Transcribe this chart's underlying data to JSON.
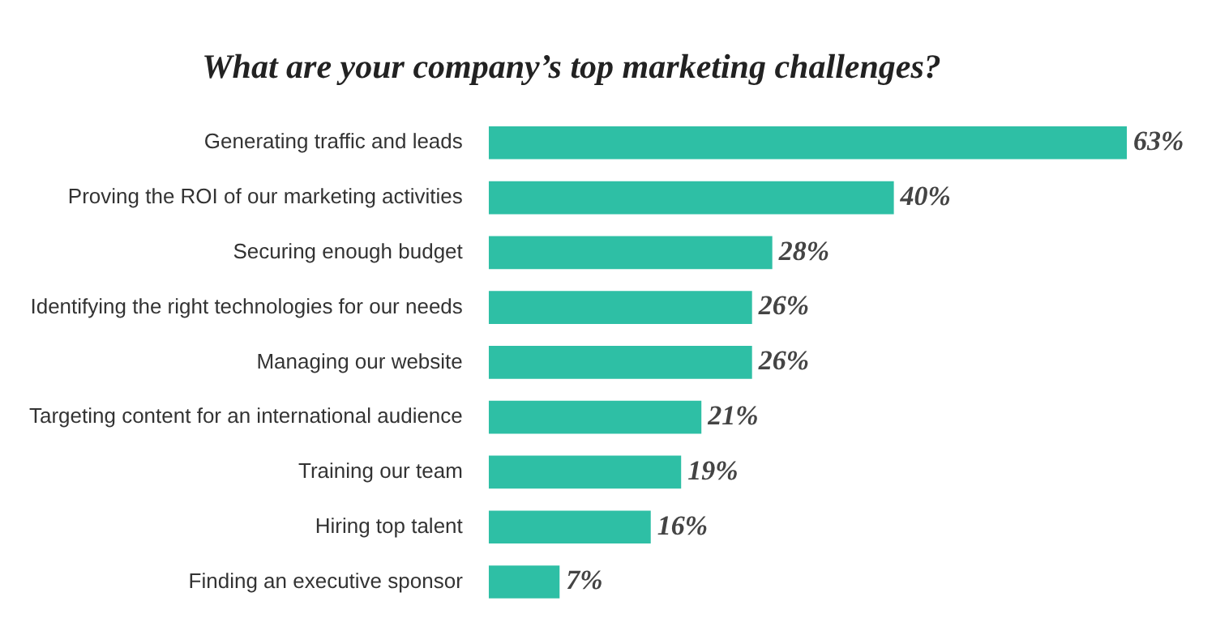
{
  "chart_data": {
    "type": "bar",
    "orientation": "horizontal",
    "title": "What are your company’s top marketing challenges?",
    "categories": [
      "Generating traffic and leads",
      "Proving the ROI of our marketing activities",
      "Securing enough budget",
      "Identifying the right technologies for our needs",
      "Managing our website",
      "Targeting content for an international audience",
      "Training our team",
      "Hiring top talent",
      "Finding an executive sponsor"
    ],
    "values": [
      63,
      40,
      28,
      26,
      26,
      21,
      19,
      16,
      7
    ],
    "value_labels": [
      "63%",
      "40%",
      "28%",
      "26%",
      "26%",
      "21%",
      "19%",
      "16%",
      "7%"
    ],
    "color": "#2ebfa5",
    "legend": false
  }
}
